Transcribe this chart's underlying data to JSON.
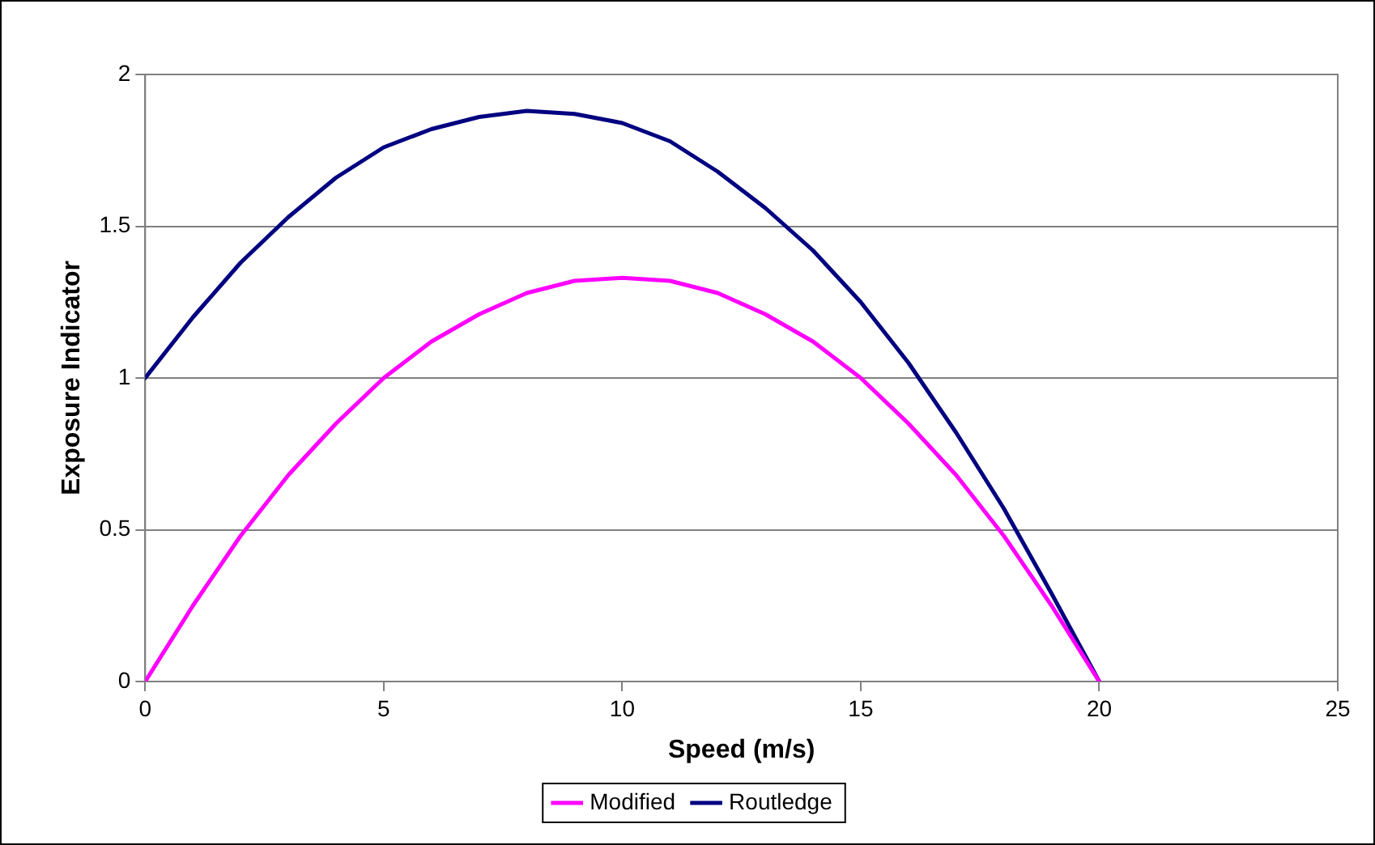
{
  "chart_data": {
    "type": "line",
    "xlabel": "Speed (m/s)",
    "ylabel": "Exposure Indicator",
    "x": [
      0,
      1,
      2,
      3,
      4,
      5,
      6,
      7,
      8,
      9,
      10,
      11,
      12,
      13,
      14,
      15,
      16,
      17,
      18,
      19,
      20
    ],
    "series": [
      {
        "name": "Modified",
        "color": "#ff00ff",
        "values": [
          0,
          0.25,
          0.48,
          0.68,
          0.85,
          1.0,
          1.12,
          1.21,
          1.28,
          1.32,
          1.33,
          1.32,
          1.28,
          1.21,
          1.12,
          1.0,
          0.85,
          0.68,
          0.48,
          0.25,
          0
        ]
      },
      {
        "name": "Routledge",
        "color": "#000080",
        "values": [
          1.0,
          1.2,
          1.38,
          1.53,
          1.66,
          1.76,
          1.82,
          1.86,
          1.88,
          1.87,
          1.84,
          1.78,
          1.68,
          1.56,
          1.42,
          1.25,
          1.05,
          0.82,
          0.57,
          0.29,
          0
        ]
      }
    ],
    "xlim": [
      0,
      25
    ],
    "xticks": [
      0,
      5,
      10,
      15,
      20,
      25
    ],
    "ylim": [
      0,
      2
    ],
    "yticks": [
      0,
      0.5,
      1,
      1.5,
      2
    ],
    "grid": "y",
    "legend": "bottom",
    "marker": "none",
    "line_style": "solid"
  }
}
